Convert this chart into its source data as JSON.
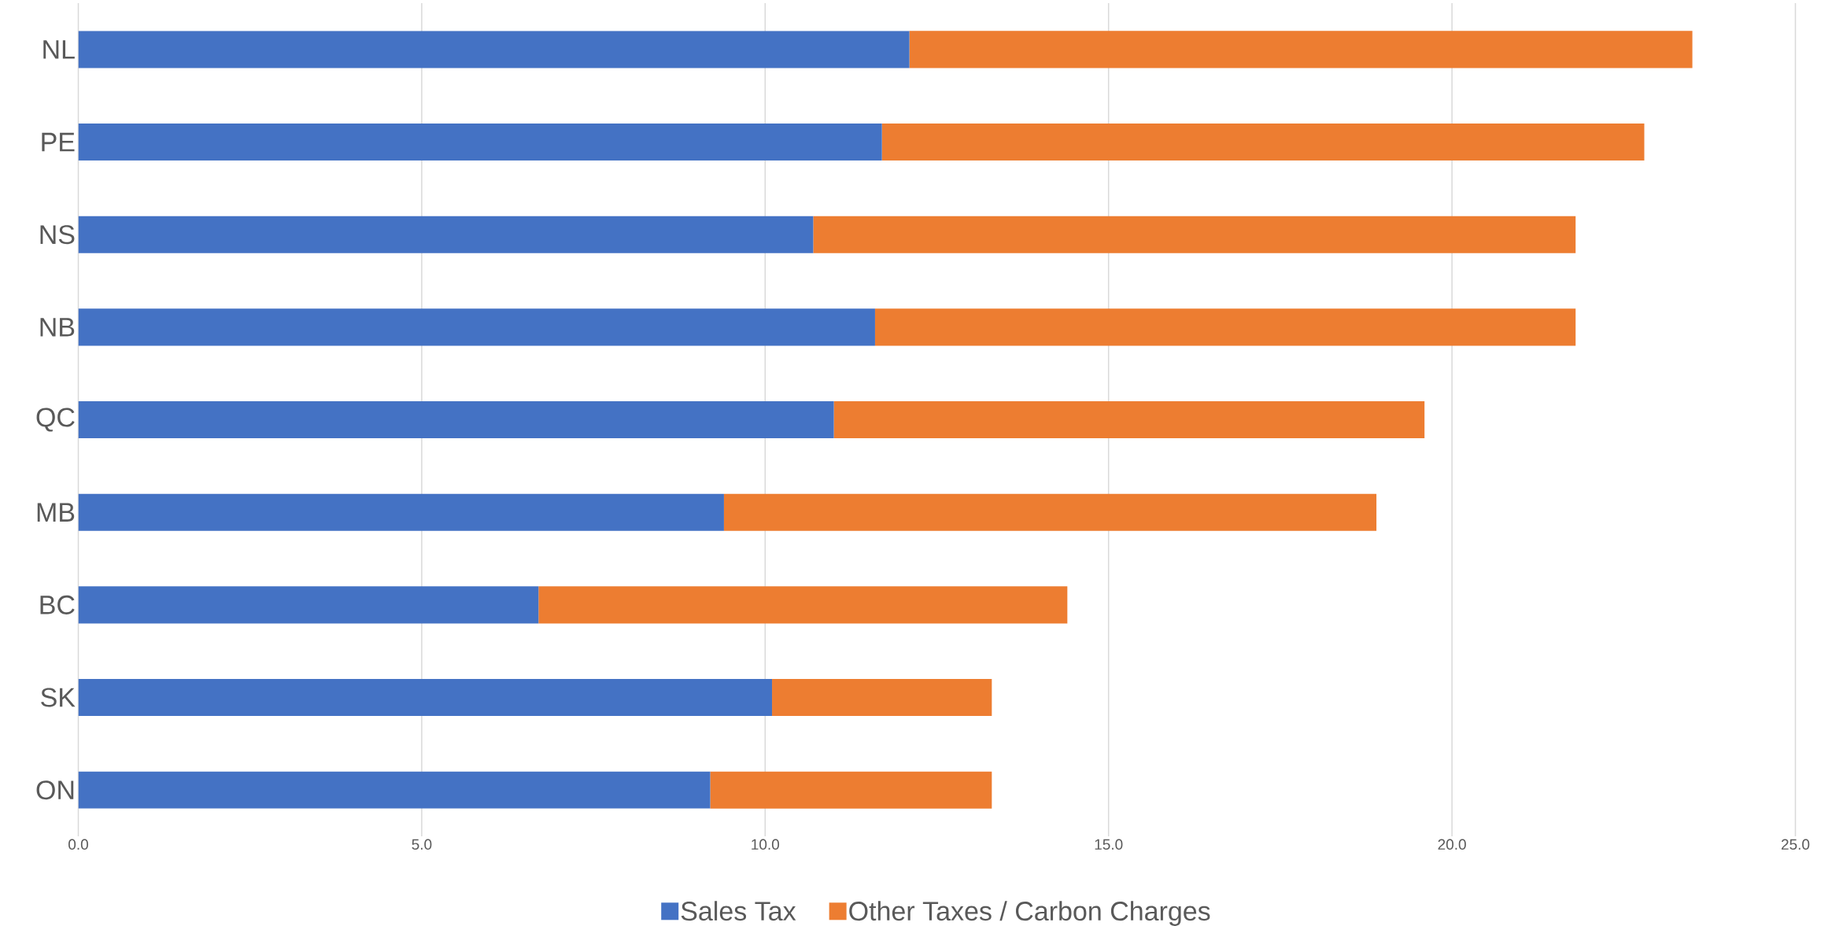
{
  "chart_data": {
    "type": "bar",
    "orientation": "horizontal",
    "stacked": true,
    "categories": [
      "NL",
      "PE",
      "NS",
      "NB",
      "QC",
      "MB",
      "BC",
      "SK",
      "ON"
    ],
    "series": [
      {
        "name": "Sales Tax",
        "color": "#4472c4",
        "values": [
          12.1,
          11.7,
          10.7,
          11.6,
          11.0,
          9.4,
          6.7,
          10.1,
          9.2
        ]
      },
      {
        "name": "Other Taxes / Carbon Charges",
        "color": "#ed7d31",
        "values": [
          11.4,
          11.1,
          11.1,
          10.2,
          8.6,
          9.5,
          7.7,
          3.2,
          4.1
        ]
      }
    ],
    "xlim": [
      0,
      25
    ],
    "xticks": [
      {
        "value": 0,
        "label": "0.0"
      },
      {
        "value": 5,
        "label": "5.0"
      },
      {
        "value": 10,
        "label": "10.0"
      },
      {
        "value": 15,
        "label": "15.0"
      },
      {
        "value": 20,
        "label": "20.0"
      },
      {
        "value": 25,
        "label": "25.0"
      }
    ],
    "grid": "x",
    "legend": "bottom"
  }
}
